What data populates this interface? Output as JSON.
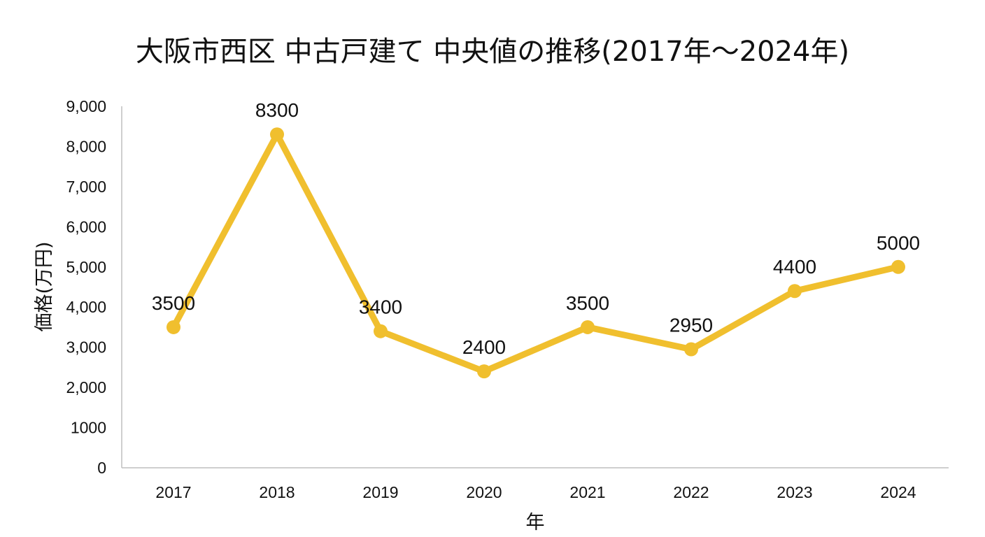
{
  "chart_data": {
    "type": "line",
    "title": "大阪市西区 中古戸建て 中央値の推移(2017年～2024年)",
    "xlabel": "年",
    "ylabel": "価格(万円)",
    "categories": [
      "2017",
      "2018",
      "2019",
      "2020",
      "2021",
      "2022",
      "2023",
      "2024"
    ],
    "series": [
      {
        "values": [
          3500,
          8300,
          3400,
          2400,
          3500,
          2950,
          4400,
          5000
        ],
        "data_labels": [
          "3500",
          "8300",
          "3400",
          "2400",
          "3500",
          "2950",
          "4400",
          "5000"
        ],
        "color": "#F0BF2E"
      }
    ],
    "yticks": [
      {
        "value": 0,
        "label": "0"
      },
      {
        "value": 1000,
        "label": "1000"
      },
      {
        "value": 2000,
        "label": "2,000"
      },
      {
        "value": 3000,
        "label": "3,000"
      },
      {
        "value": 4000,
        "label": "4,000"
      },
      {
        "value": 5000,
        "label": "5,000"
      },
      {
        "value": 6000,
        "label": "6,000"
      },
      {
        "value": 7000,
        "label": "7,000"
      },
      {
        "value": 8000,
        "label": "8,000"
      },
      {
        "value": 9000,
        "label": "9,000"
      }
    ],
    "ylim": [
      0,
      9000
    ],
    "grid": false,
    "legend": "none",
    "axis_color": "#BFBFBF"
  }
}
